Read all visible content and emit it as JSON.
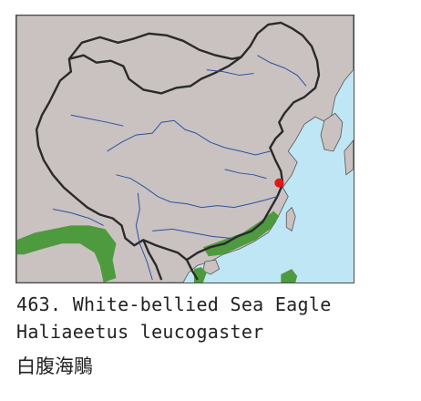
{
  "map": {
    "colors": {
      "sea": "#bfe6f5",
      "land": "#c9c2c0",
      "border": "#2a2a2a",
      "river": "#2f4f9f",
      "range": "#4e9a3e",
      "marker": "#e01818"
    },
    "range_regions": [
      "himalayan-foothills",
      "southern-coast",
      "hainan-island",
      "taiwan-south"
    ],
    "marker_label": ""
  },
  "caption": {
    "title": "463. White-bellied Sea Eagle",
    "scientific": "Haliaeetus leucogaster",
    "chinese": "白腹海鵰"
  }
}
